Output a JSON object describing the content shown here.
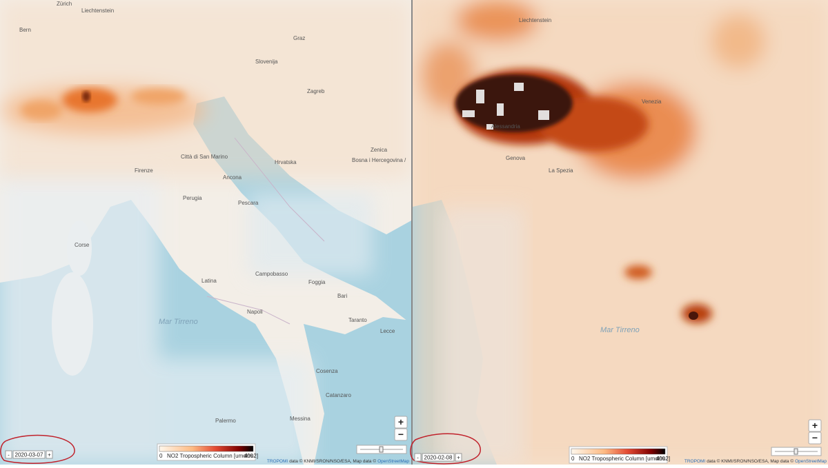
{
  "panels": [
    {
      "date": "2020-03-07",
      "date_prev": "-",
      "date_next": "+",
      "zoom_in": "+",
      "zoom_out": "−",
      "legend": {
        "min": 0,
        "label": "NO2 Tropospheric Column [umol/m2]",
        "max": 400
      },
      "attribution": {
        "source": "TROPOMI",
        "text": "data © KNMI/SRON/NSO/ESA, Map data ©",
        "link": "OpenStreetMap"
      },
      "places": [
        "Zürich",
        "Liechtenstein",
        "Bern",
        "Graz",
        "Slovenija",
        "Zagreb",
        "Hrvatska",
        "Bosna i Hercegovina /",
        "Zenica",
        "Città di San Marino",
        "Firenze",
        "Ancona",
        "Perugia",
        "Pescara",
        "Latina",
        "Campobasso",
        "Napoli",
        "Foggia",
        "Bari",
        "Taranto",
        "Lecce",
        "Cosenza",
        "Catanzaro",
        "Palermo",
        "Messina",
        "Corse",
        "Mar Tirreno"
      ]
    },
    {
      "date": "2020-02-08",
      "date_prev": "-",
      "date_next": "+",
      "zoom_in": "+",
      "zoom_out": "−",
      "legend": {
        "min": 0,
        "label": "NO2 Tropospheric Column [umol/m2]",
        "max": 400
      },
      "attribution": {
        "source": "TROPOMI",
        "text": "data © KNMI/SRON/NSO/ESA, Map data ©",
        "link": "OpenStreetMap"
      },
      "places": [
        "Liechtenstein",
        "Alessandria",
        "Venezia",
        "Genova",
        "La Spezia",
        "Mar Tirreno"
      ]
    }
  ]
}
